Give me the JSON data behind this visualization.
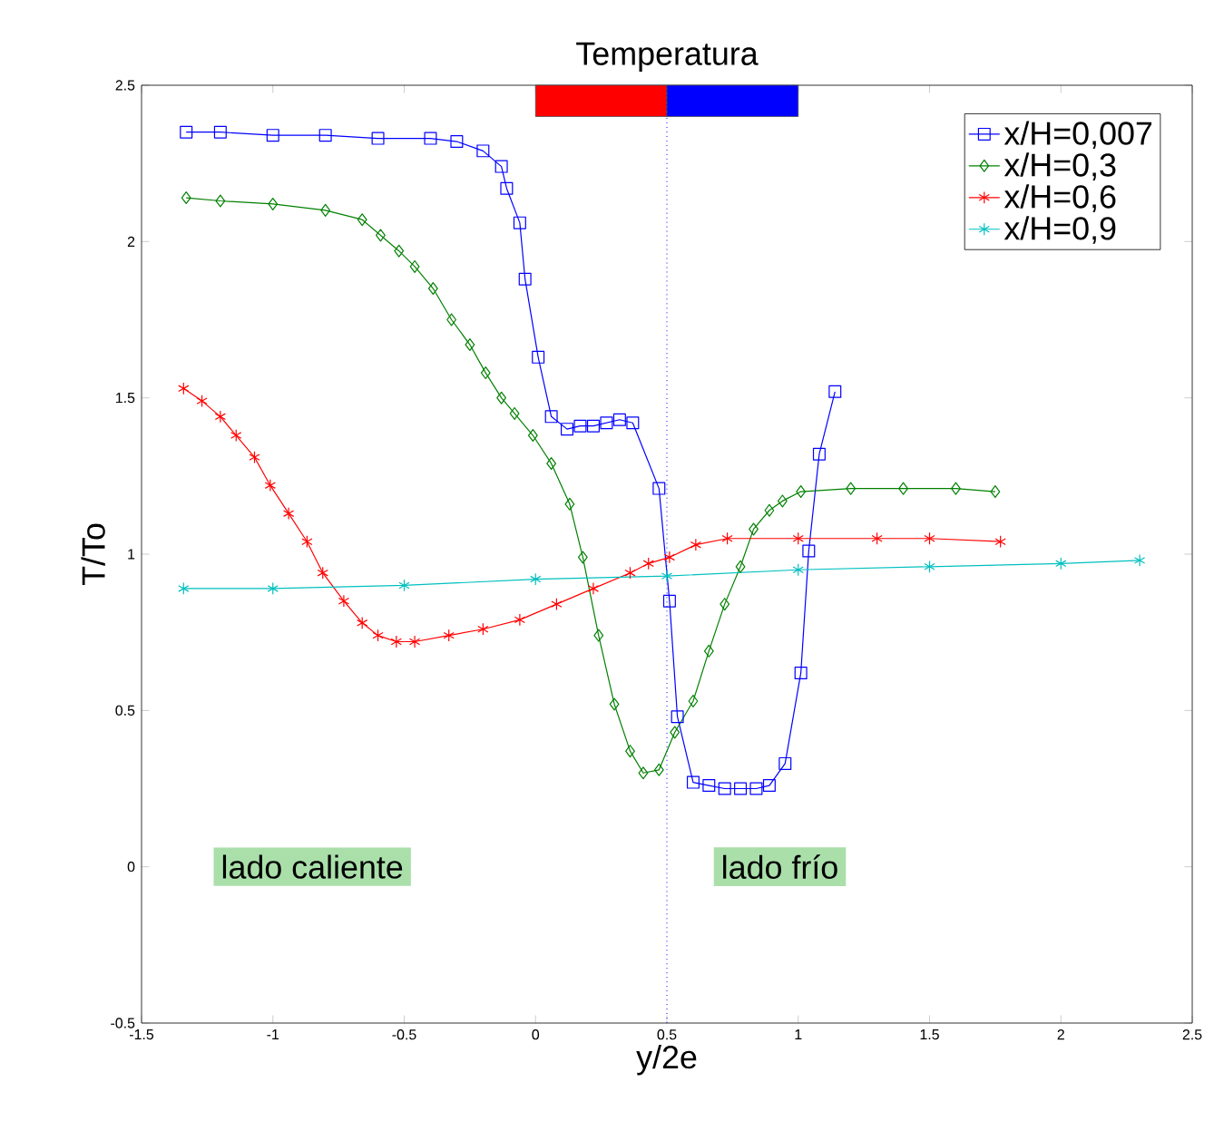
{
  "chart_data": {
    "type": "line",
    "title": "Temperatura",
    "xlabel": "y/2e",
    "ylabel": "T/To",
    "xlim": [
      -1.5,
      2.5
    ],
    "ylim": [
      -0.5,
      2.5
    ],
    "xticks": [
      -1.5,
      -1,
      -0.5,
      0,
      0.5,
      1,
      1.5,
      2,
      2.5
    ],
    "yticks": [
      -0.5,
      0,
      0.5,
      1,
      1.5,
      2,
      2.5
    ],
    "grid": false,
    "legend": "top right",
    "line_style": "solid",
    "series": [
      {
        "name": "x/H=0,007",
        "color": "#0000ff",
        "marker": "square",
        "x": [
          -1.33,
          -1.2,
          -1.0,
          -0.8,
          -0.6,
          -0.4,
          -0.3,
          -0.2,
          -0.13,
          -0.11,
          -0.06,
          -0.04,
          0.01,
          0.06,
          0.12,
          0.17,
          0.22,
          0.27,
          0.32,
          0.37,
          0.47,
          0.51,
          0.54,
          0.6,
          0.66,
          0.72,
          0.78,
          0.84,
          0.89,
          0.95,
          1.01,
          1.04,
          1.08,
          1.14
        ],
        "values": [
          2.35,
          2.35,
          2.34,
          2.34,
          2.33,
          2.33,
          2.32,
          2.29,
          2.24,
          2.17,
          2.06,
          1.88,
          1.63,
          1.44,
          1.4,
          1.41,
          1.41,
          1.42,
          1.43,
          1.42,
          1.21,
          0.85,
          0.48,
          0.27,
          0.26,
          0.25,
          0.25,
          0.25,
          0.26,
          0.33,
          0.62,
          1.01,
          1.32,
          1.52
        ]
      },
      {
        "name": "x/H=0,3",
        "color": "#008000",
        "marker": "diamond",
        "x": [
          -1.33,
          -1.2,
          -1.0,
          -0.8,
          -0.66,
          -0.59,
          -0.52,
          -0.46,
          -0.39,
          -0.32,
          -0.25,
          -0.19,
          -0.13,
          -0.08,
          -0.01,
          0.06,
          0.13,
          0.18,
          0.24,
          0.3,
          0.36,
          0.41,
          0.47,
          0.53,
          0.6,
          0.66,
          0.72,
          0.78,
          0.83,
          0.89,
          0.94,
          1.01,
          1.2,
          1.4,
          1.6,
          1.75
        ],
        "values": [
          2.14,
          2.13,
          2.12,
          2.1,
          2.07,
          2.02,
          1.97,
          1.92,
          1.85,
          1.75,
          1.67,
          1.58,
          1.5,
          1.45,
          1.38,
          1.29,
          1.16,
          0.99,
          0.74,
          0.52,
          0.37,
          0.3,
          0.31,
          0.43,
          0.53,
          0.69,
          0.84,
          0.96,
          1.08,
          1.14,
          1.17,
          1.2,
          1.21,
          1.21,
          1.21,
          1.2
        ]
      },
      {
        "name": "x/H=0,6",
        "color": "#ff0000",
        "marker": "cross",
        "x": [
          -1.34,
          -1.27,
          -1.2,
          -1.14,
          -1.07,
          -1.01,
          -0.94,
          -0.87,
          -0.81,
          -0.73,
          -0.66,
          -0.6,
          -0.53,
          -0.46,
          -0.33,
          -0.2,
          -0.06,
          0.08,
          0.22,
          0.36,
          0.43,
          0.51,
          0.61,
          0.73,
          1.0,
          1.3,
          1.5,
          1.77
        ],
        "values": [
          1.53,
          1.49,
          1.44,
          1.38,
          1.31,
          1.22,
          1.13,
          1.04,
          0.94,
          0.85,
          0.78,
          0.74,
          0.72,
          0.72,
          0.74,
          0.76,
          0.79,
          0.84,
          0.89,
          0.94,
          0.97,
          0.99,
          1.03,
          1.05,
          1.05,
          1.05,
          1.05,
          1.04
        ]
      },
      {
        "name": "x/H=0,9",
        "color": "#00bfbf",
        "marker": "cross",
        "x": [
          -1.34,
          -1.0,
          -0.5,
          0.0,
          0.5,
          1.0,
          1.5,
          2.0,
          2.3
        ],
        "values": [
          0.89,
          0.89,
          0.9,
          0.92,
          0.93,
          0.95,
          0.96,
          0.97,
          0.98
        ]
      },
      {
        "type": "bar",
        "x": [
          0.25,
          0.75
        ],
        "base": [
          2.4,
          2.4
        ],
        "values": [
          0.1,
          0.1
        ],
        "colors": [
          "#ff0000",
          "#0000ff"
        ]
      }
    ],
    "ref_lines": [
      {
        "axis": "x",
        "value": 0.5,
        "color": "#0000ff",
        "line_style": "dotted"
      }
    ],
    "annotations": [
      "lado caliente",
      "lado frío"
    ]
  }
}
